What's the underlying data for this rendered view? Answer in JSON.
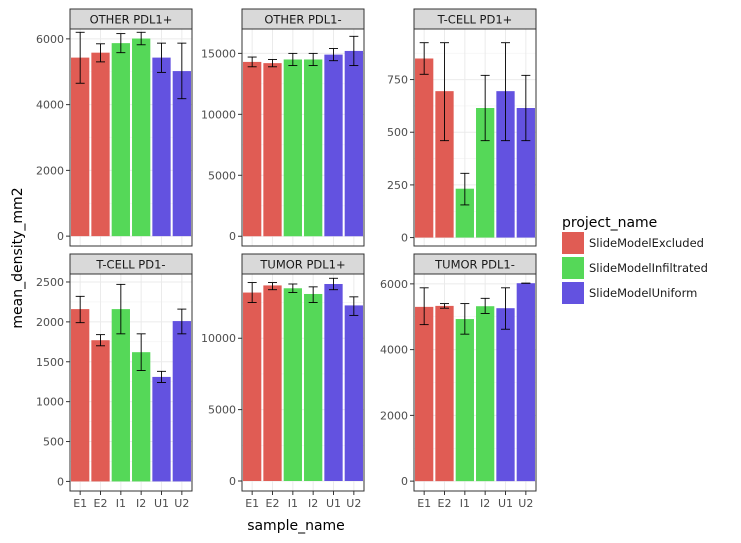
{
  "chart_data": {
    "type": "bar",
    "xlabel": "sample_name",
    "ylabel": "mean_density_mm2",
    "categories": [
      "E1",
      "E2",
      "I1",
      "I2",
      "U1",
      "U2"
    ],
    "category_groups": [
      "SlideModelExcluded",
      "SlideModelExcluded",
      "SlideModelInfiltrated",
      "SlideModelInfiltrated",
      "SlideModelUniform",
      "SlideModelUniform"
    ],
    "legend": {
      "title": "project_name",
      "position": "right",
      "entries": [
        {
          "name": "SlideModelExcluded",
          "color": "#e05c54"
        },
        {
          "name": "SlideModelInfiltrated",
          "color": "#55d858"
        },
        {
          "name": "SlideModelUniform",
          "color": "#6352e0"
        }
      ]
    },
    "grid": true,
    "panels": [
      {
        "title": "OTHER PDL1+",
        "ylim": [
          -300,
          6300
        ],
        "yticks": [
          0,
          2000,
          4000,
          6000
        ],
        "values": [
          5430,
          5580,
          5870,
          6010,
          5430,
          5020
        ],
        "err_low": [
          4650,
          5300,
          5580,
          5820,
          4980,
          4180
        ],
        "err_high": [
          6200,
          5850,
          6160,
          6200,
          5870,
          5870
        ]
      },
      {
        "title": "OTHER PDL1-",
        "ylim": [
          -800,
          17000
        ],
        "yticks": [
          0,
          5000,
          10000,
          15000
        ],
        "values": [
          14300,
          14200,
          14500,
          14500,
          14900,
          15200
        ],
        "err_low": [
          13900,
          13900,
          14000,
          14000,
          14400,
          14000
        ],
        "err_high": [
          14700,
          14500,
          15000,
          15000,
          15400,
          16400
        ]
      },
      {
        "title": "T-CELL PD1+",
        "ylim": [
          -40,
          990
        ],
        "yticks": [
          0,
          250,
          500,
          750
        ],
        "values": [
          850,
          695,
          232,
          615,
          695,
          615
        ],
        "err_low": [
          775,
          460,
          155,
          460,
          460,
          460
        ],
        "err_high": [
          925,
          925,
          305,
          770,
          925,
          770
        ]
      },
      {
        "title": "T-CELL PD1-",
        "ylim": [
          -120,
          2600
        ],
        "yticks": [
          0,
          500,
          1000,
          1500,
          2000,
          2500
        ],
        "values": [
          2160,
          1770,
          2160,
          1620,
          1310,
          2010
        ],
        "err_low": [
          1990,
          1700,
          1850,
          1390,
          1240,
          1850
        ],
        "err_high": [
          2320,
          1840,
          2470,
          1850,
          1380,
          2160
        ]
      },
      {
        "title": "TUMOR PDL1+",
        "ylim": [
          -700,
          14500
        ],
        "yticks": [
          0,
          5000,
          10000
        ],
        "values": [
          13200,
          13700,
          13500,
          13100,
          13800,
          12300
        ],
        "err_low": [
          12500,
          13400,
          13200,
          12500,
          13400,
          11600
        ],
        "err_high": [
          13900,
          13900,
          13800,
          13600,
          14200,
          12900
        ]
      },
      {
        "title": "TUMOR PDL1-",
        "ylim": [
          -300,
          6300
        ],
        "yticks": [
          0,
          2000,
          4000,
          6000
        ],
        "values": [
          5300,
          5330,
          4930,
          5320,
          5260,
          6020
        ],
        "err_low": [
          4760,
          5260,
          4470,
          5100,
          4620,
          6020
        ],
        "err_high": [
          5880,
          5400,
          5400,
          5560,
          5880,
          6020
        ]
      }
    ]
  }
}
